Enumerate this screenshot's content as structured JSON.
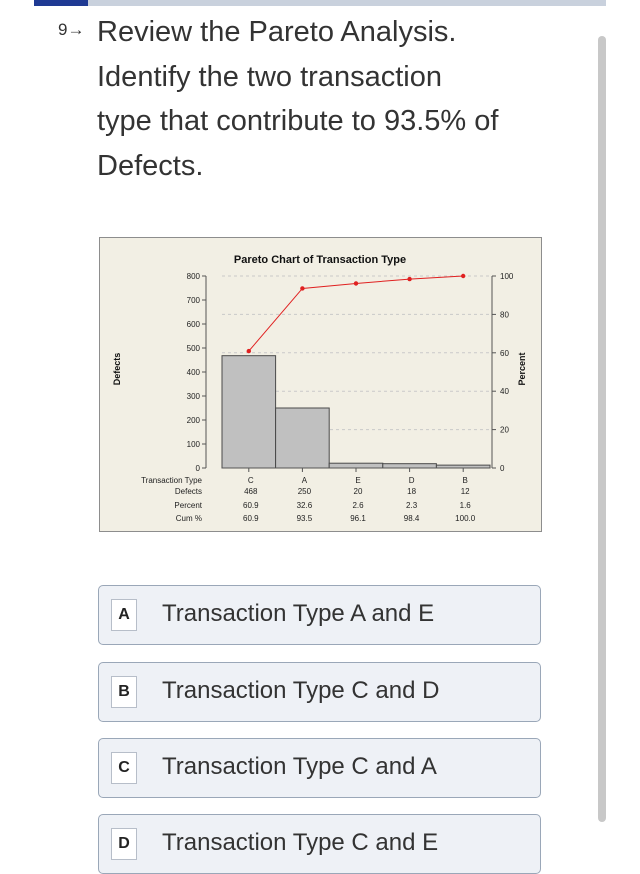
{
  "question": {
    "number_icon": "9→",
    "lines": [
      "Review the Pareto Analysis.",
      "Identify the two transaction",
      "type that contribute to 93.5% of",
      "Defects."
    ]
  },
  "chart_data": {
    "type": "bar",
    "title": "Pareto Chart of Transaction Type",
    "ylabel": "Defects",
    "ylabel_right": "Percent",
    "categories": [
      "C",
      "A",
      "E",
      "D",
      "B"
    ],
    "values": [
      468,
      250,
      20,
      18,
      12
    ],
    "cumulative_percent": [
      60.9,
      93.5,
      96.1,
      98.4,
      100.0
    ],
    "ylim": [
      0,
      800
    ],
    "yticks": [
      "0",
      "100",
      "200",
      "300",
      "400",
      "500",
      "600",
      "700",
      "800"
    ],
    "ylim_right": [
      0,
      100
    ],
    "yticks_right": [
      "0",
      "20",
      "40",
      "60",
      "80",
      "100"
    ],
    "table": {
      "row_labels": [
        "Transaction Type",
        "Defects",
        "Percent",
        "Cum %"
      ],
      "columns": [
        {
          "type": "C",
          "defects": "468",
          "percent": "60.9",
          "cum": "60.9"
        },
        {
          "type": "A",
          "defects": "250",
          "percent": "32.6",
          "cum": "93.5"
        },
        {
          "type": "E",
          "defects": "20",
          "percent": "2.6",
          "cum": "96.1"
        },
        {
          "type": "D",
          "defects": "18",
          "percent": "2.3",
          "cum": "98.4"
        },
        {
          "type": "B",
          "defects": "12",
          "percent": "1.6",
          "cum": "100.0"
        }
      ]
    },
    "colors": {
      "bar": "#c0c0c0",
      "line": "#e02020",
      "background": "#f2efe4"
    }
  },
  "options": [
    {
      "letter": "A",
      "text": "Transaction Type A and E"
    },
    {
      "letter": "B",
      "text": "Transaction Type C and D"
    },
    {
      "letter": "C",
      "text": "Transaction Type C and A"
    },
    {
      "letter": "D",
      "text": "Transaction Type C and E"
    }
  ]
}
